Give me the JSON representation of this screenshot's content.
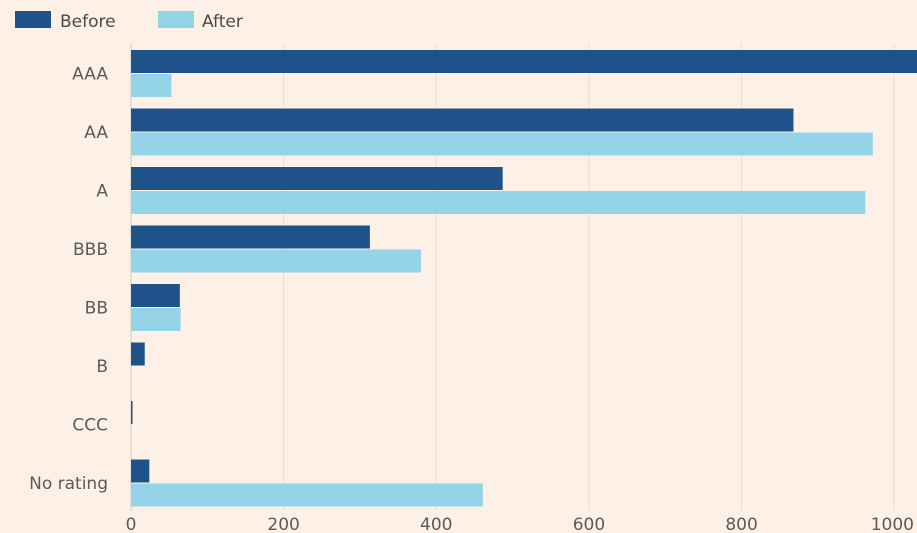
{
  "chart_data": {
    "type": "bar",
    "orientation": "horizontal",
    "categories": [
      "AAA",
      "AA",
      "A",
      "BBB",
      "BB",
      "B",
      "CCC",
      "No rating"
    ],
    "series": [
      {
        "name": "Before",
        "color": "#1f5289",
        "values": [
          1040,
          868,
          487,
          313,
          64,
          18,
          2,
          24
        ]
      },
      {
        "name": "After",
        "color": "#94d3e8",
        "values": [
          53,
          972,
          962,
          380,
          65,
          0,
          0,
          461
        ]
      }
    ],
    "xlim": [
      0,
      1030
    ],
    "xticks": [
      0,
      200,
      400,
      600,
      800,
      1000
    ],
    "grid": true,
    "legend_position": "top-left",
    "title": "",
    "xlabel": "",
    "ylabel": ""
  }
}
